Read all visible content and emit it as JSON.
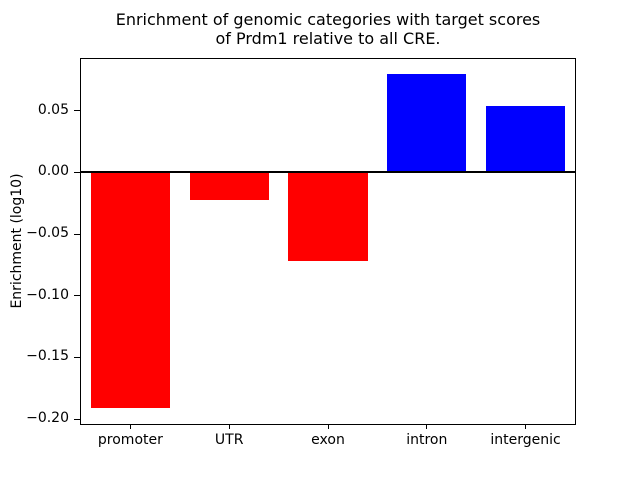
{
  "chart_data": {
    "type": "bar",
    "title": "Enrichment of genomic categories with target scores\nof Prdm1 relative to all CRE.",
    "ylabel": "Enrichment (log10)",
    "xlabel": "",
    "categories": [
      "promoter",
      "UTR",
      "exon",
      "intron",
      "intergenic"
    ],
    "values": [
      -0.191,
      -0.022,
      -0.072,
      0.08,
      0.054
    ],
    "bar_colors": [
      "#ff0000",
      "#ff0000",
      "#ff0000",
      "#0000ff",
      "#0000ff"
    ],
    "negative_color": "#ff0000",
    "positive_color": "#0000ff",
    "yticks": [
      0.05,
      0.0,
      -0.05,
      -0.1,
      -0.15,
      -0.2
    ],
    "ylim": [
      -0.204,
      0.092
    ],
    "zero_line": true,
    "grid": false,
    "legend_position": "none",
    "axis_color": "#000000",
    "background_color": "#ffffff"
  }
}
